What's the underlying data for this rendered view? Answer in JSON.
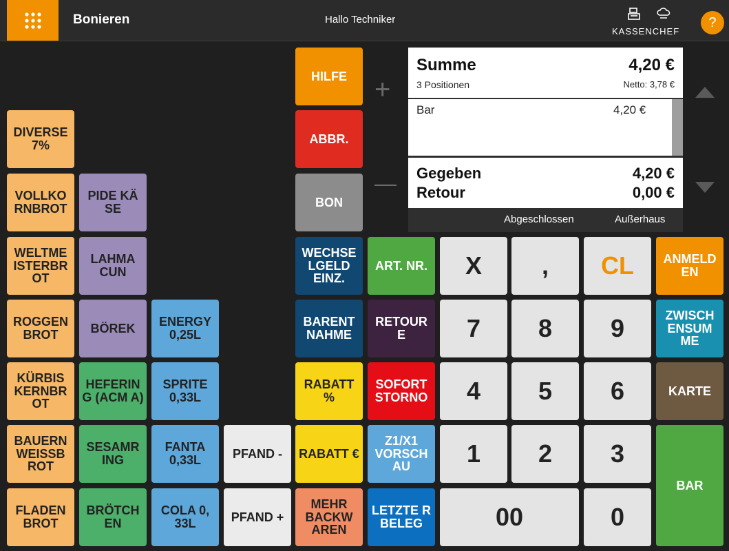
{
  "header": {
    "title": "Bonieren",
    "greeting": "Hallo Techniker",
    "logo_text": "KASSENCHEF",
    "help_label": "?",
    "menu_icon": "grid-icon",
    "accent": "#f29100"
  },
  "products": [
    {
      "label": "DIVERSE 7%"
    },
    {
      "label": "VOLLKO RNBROT"
    },
    {
      "label": "WELTME ISTERBR OT"
    },
    {
      "label": "ROGGEN BROT"
    },
    {
      "label": "KÜRBIS KERNBR OT"
    },
    {
      "label": "BAUERN WEISSB ROT"
    },
    {
      "label": "FLADEN BROT"
    },
    {
      "label": "PIDE KÄ SE"
    },
    {
      "label": "LAHMA CUN"
    },
    {
      "label": "BÖREK"
    },
    {
      "label": "HEFERIN G (ACM A)"
    },
    {
      "label": "SESAMR ING"
    },
    {
      "label": "BRÖTCH EN"
    },
    {
      "label": "ENERGY 0,25L"
    },
    {
      "label": "SPRITE 0,33L"
    },
    {
      "label": "FANTA 0,33L"
    },
    {
      "label": "COLA 0, 33L"
    },
    {
      "label": "PFAND -"
    },
    {
      "label": "PFAND +"
    }
  ],
  "functions": {
    "hilfe": "HILFE",
    "abbr": "ABBR.",
    "bon": "BON",
    "wechselgeld": "WECHSE LGELD EINZ.",
    "art_nr": "ART. NR.",
    "barentnahme": "BARENT NAHME",
    "retoure": "RETOUR E",
    "rabatt_pct": "RABATT %",
    "sofort_storno": "SOFORT STORNO",
    "rabatt_eur": "RABATT €",
    "z1x1": "Z1/X1 VORSCH AU",
    "mehr_backwaren": "MEHR BACKW AREN",
    "letzter_beleg": "LETZTE R BELEG",
    "anmelden": "ANMELD EN",
    "zwischensumme": "ZWISCH ENSUM ME",
    "karte": "KARTE",
    "bar": "BAR"
  },
  "keypad": {
    "x": "X",
    "comma": ",",
    "cl": "CL",
    "k7": "7",
    "k8": "8",
    "k9": "9",
    "k4": "4",
    "k5": "5",
    "k6": "6",
    "k1": "1",
    "k2": "2",
    "k3": "3",
    "k00": "00",
    "k0": "0"
  },
  "summary": {
    "label": "Summe",
    "positions": "3 Positionen",
    "total": "4,20 €",
    "netto": "Netto: 3,78 €",
    "lines": [
      {
        "name": "Bar",
        "price": "4,20 €"
      }
    ],
    "given_label": "Gegeben",
    "given_value": "4,20 €",
    "return_label": "Retour",
    "return_value": "0,00 €",
    "status": "Abgeschlossen",
    "mode": "Außerhaus"
  },
  "controls": {
    "plus": "+",
    "minus": "—"
  }
}
